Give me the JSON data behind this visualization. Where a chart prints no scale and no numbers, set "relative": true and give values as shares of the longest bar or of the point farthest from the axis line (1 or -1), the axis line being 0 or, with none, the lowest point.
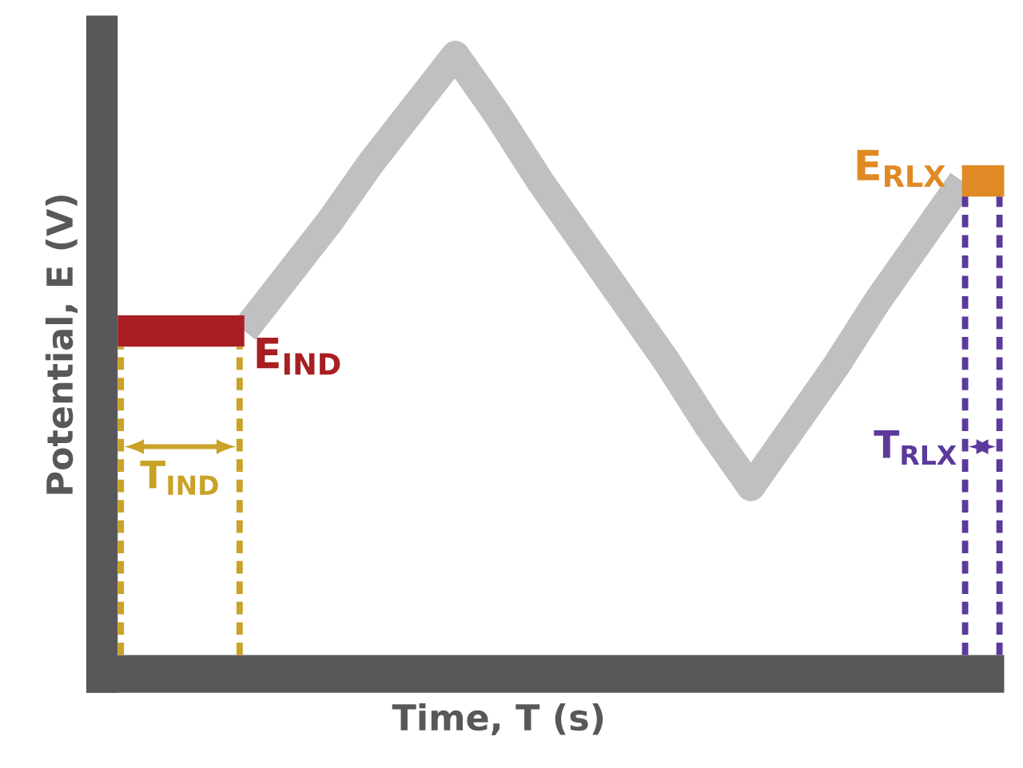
{
  "chart_data": {
    "type": "line",
    "relative": true,
    "xlabel": "Time, T (s)",
    "ylabel": "Potential, E (V)",
    "categories": [
      null,
      null,
      null,
      null,
      null,
      null,
      null,
      null,
      null,
      null,
      null,
      null,
      null,
      null,
      null,
      null,
      null,
      null,
      null,
      null,
      null,
      null
    ],
    "series": [
      {
        "name": "E$_{IND}$",
        "color": "#a81e22",
        "values": [
          0.54,
          0.54,
          0.54,
          0.54,
          null,
          null,
          null,
          null,
          null,
          null,
          null,
          null,
          null,
          null,
          null,
          null,
          null,
          null,
          null,
          null,
          null,
          null
        ]
      },
      {
        "color": "#c0c0c2",
        "values": [
          null,
          null,
          null,
          0.54,
          0.63,
          0.72,
          0.82,
          0.91,
          1.0,
          0.9,
          0.79,
          0.69,
          0.59,
          0.49,
          0.38,
          0.28,
          0.38,
          0.48,
          0.59,
          0.69,
          0.79,
          null
        ]
      },
      {
        "name": "E$_{RLX}$",
        "color": "#e08a25",
        "values": [
          null,
          null,
          null,
          null,
          null,
          null,
          null,
          null,
          null,
          null,
          null,
          null,
          null,
          null,
          null,
          null,
          null,
          null,
          null,
          null,
          0.79,
          0.79
        ]
      }
    ],
    "annotations": [
      "T$_{IND}$",
      "T$_{RLX}$"
    ]
  }
}
